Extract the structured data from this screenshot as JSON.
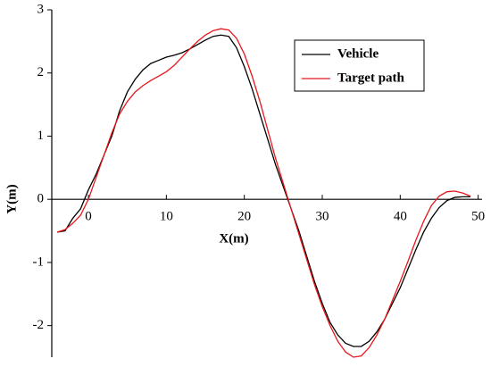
{
  "chart_data": {
    "type": "line",
    "xlabel": "X(m)",
    "ylabel": "Y(m)",
    "x": [
      -4,
      -3,
      -2,
      -1,
      0,
      1,
      2,
      3,
      4,
      5,
      6,
      7,
      8,
      9,
      10,
      11,
      12,
      13,
      14,
      15,
      16,
      17,
      18,
      19,
      20,
      21,
      22,
      23,
      24,
      25,
      26,
      27,
      28,
      29,
      30,
      31,
      32,
      33,
      34,
      35,
      36,
      37,
      38,
      39,
      40,
      41,
      42,
      43,
      44,
      45,
      46,
      47,
      48,
      49
    ],
    "series": [
      {
        "name": "Vehicle",
        "color": "#000000",
        "values": [
          -0.52,
          -0.5,
          -0.3,
          -0.15,
          0.15,
          0.4,
          0.7,
          1.0,
          1.4,
          1.7,
          1.9,
          2.05,
          2.15,
          2.2,
          2.25,
          2.28,
          2.32,
          2.38,
          2.45,
          2.52,
          2.58,
          2.6,
          2.58,
          2.4,
          2.1,
          1.75,
          1.35,
          0.95,
          0.55,
          0.2,
          -0.15,
          -0.5,
          -0.9,
          -1.3,
          -1.65,
          -1.95,
          -2.15,
          -2.28,
          -2.33,
          -2.33,
          -2.25,
          -2.1,
          -1.9,
          -1.65,
          -1.4,
          -1.1,
          -0.8,
          -0.52,
          -0.3,
          -0.13,
          -0.02,
          0.03,
          0.04,
          0.04
        ]
      },
      {
        "name": "Target path",
        "color": "#e8161b",
        "values": [
          -0.52,
          -0.48,
          -0.38,
          -0.25,
          0.0,
          0.35,
          0.7,
          1.05,
          1.35,
          1.55,
          1.7,
          1.8,
          1.88,
          1.95,
          2.02,
          2.12,
          2.25,
          2.38,
          2.5,
          2.6,
          2.67,
          2.7,
          2.68,
          2.55,
          2.3,
          1.95,
          1.55,
          1.1,
          0.65,
          0.25,
          -0.15,
          -0.55,
          -0.95,
          -1.35,
          -1.7,
          -2.0,
          -2.25,
          -2.42,
          -2.5,
          -2.48,
          -2.35,
          -2.15,
          -1.9,
          -1.6,
          -1.3,
          -0.98,
          -0.65,
          -0.35,
          -0.1,
          0.05,
          0.12,
          0.13,
          0.1,
          0.05
        ]
      }
    ],
    "xlim": [
      -4.7,
      50.5
    ],
    "ylim": [
      -2.5,
      3
    ],
    "xticks": [
      0,
      10,
      20,
      30,
      40,
      50
    ],
    "yticks": [
      -2,
      -1,
      0,
      1,
      2,
      3
    ],
    "legend": "upper right"
  }
}
